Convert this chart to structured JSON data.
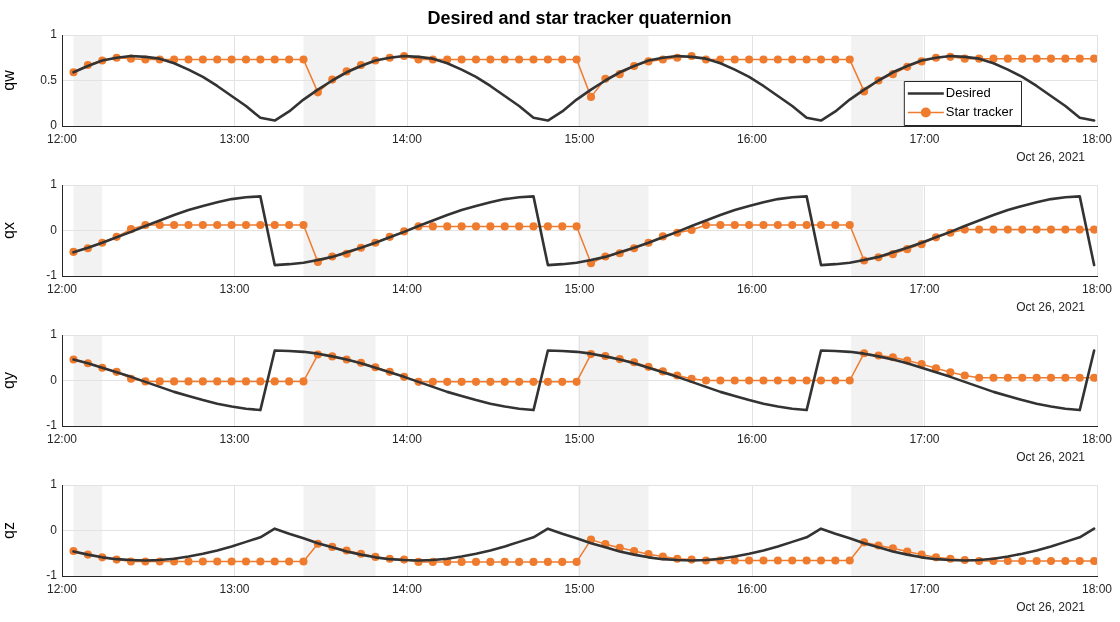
{
  "chart_data": [
    {
      "type": "line",
      "title": "Desired and star tracker quaternion",
      "ylabel": "qw",
      "xlim": [
        12,
        18
      ],
      "ylim": [
        0,
        1
      ],
      "yticks": [
        0,
        0.5,
        1
      ],
      "xticks": [
        {
          "value": 12,
          "label": "12:00"
        },
        {
          "value": 13,
          "label": "13:00"
        },
        {
          "value": 14,
          "label": "14:00"
        },
        {
          "value": 15,
          "label": "15:00"
        },
        {
          "value": 16,
          "label": "16:00"
        },
        {
          "value": 17,
          "label": "17:00"
        },
        {
          "value": 18,
          "label": "18:00"
        }
      ],
      "grid": true,
      "legend": "bottom right",
      "annotations": [
        "Oct 26, 2021"
      ],
      "bands": [
        {
          "axis": "x",
          "from": 12.067,
          "to": 12.233,
          "color": "#f2f2f2"
        },
        {
          "axis": "x",
          "from": 13.4,
          "to": 13.817,
          "color": "#f2f2f2"
        },
        {
          "axis": "x",
          "from": 14.992,
          "to": 15.4,
          "color": "#f2f2f2"
        },
        {
          "axis": "x",
          "from": 16.575,
          "to": 16.992,
          "color": "#f2f2f2"
        }
      ],
      "x": [
        12.0667,
        12.15,
        12.2333,
        12.3167,
        12.4,
        12.4833,
        12.5667,
        12.65,
        12.7333,
        12.8167,
        12.9,
        12.9833,
        13.0667,
        13.15,
        13.2333,
        13.3167,
        13.4,
        13.4833,
        13.5667,
        13.65,
        13.7333,
        13.8167,
        13.9,
        13.9833,
        14.0667,
        14.15,
        14.2333,
        14.3167,
        14.4,
        14.4833,
        14.5667,
        14.65,
        14.7333,
        14.8167,
        14.9,
        14.9833,
        15.0667,
        15.15,
        15.2333,
        15.3167,
        15.4,
        15.4833,
        15.5667,
        15.65,
        15.7333,
        15.8167,
        15.9,
        15.9833,
        16.0667,
        16.15,
        16.2333,
        16.3167,
        16.4,
        16.4833,
        16.5667,
        16.65,
        16.7333,
        16.8167,
        16.9,
        16.9833,
        17.0667,
        17.15,
        17.2333,
        17.3167,
        17.4,
        17.4833,
        17.5667,
        17.65,
        17.7333,
        17.8167,
        17.9,
        17.9833
      ],
      "series": [
        {
          "name": "Desired",
          "color": "#333333",
          "marker": "none",
          "values": [
            0.59,
            0.66,
            0.72,
            0.75,
            0.77,
            0.76,
            0.74,
            0.69,
            0.62,
            0.54,
            0.44,
            0.33,
            0.22,
            0.09,
            0.06,
            0.16,
            0.29,
            0.4,
            0.5,
            0.59,
            0.66,
            0.72,
            0.75,
            0.77,
            0.76,
            0.74,
            0.69,
            0.62,
            0.54,
            0.44,
            0.33,
            0.22,
            0.09,
            0.06,
            0.16,
            0.29,
            0.4,
            0.5,
            0.59,
            0.66,
            0.72,
            0.75,
            0.77,
            0.76,
            0.74,
            0.69,
            0.62,
            0.54,
            0.44,
            0.33,
            0.22,
            0.09,
            0.06,
            0.16,
            0.29,
            0.4,
            0.5,
            0.59,
            0.66,
            0.72,
            0.75,
            0.77,
            0.76,
            0.74,
            0.69,
            0.62,
            0.54,
            0.44,
            0.33,
            0.22,
            0.09,
            0.06
          ]
        },
        {
          "name": "Star tracker",
          "color": "#ef7b2e",
          "marker": "circle",
          "values": [
            0.59,
            0.67,
            0.72,
            0.75,
            0.74,
            0.73,
            0.73,
            0.73,
            0.73,
            0.73,
            0.73,
            0.73,
            0.73,
            0.73,
            0.73,
            0.73,
            0.73,
            0.37,
            0.51,
            0.6,
            0.67,
            0.72,
            0.75,
            0.77,
            0.73,
            0.73,
            0.73,
            0.73,
            0.73,
            0.73,
            0.73,
            0.73,
            0.73,
            0.73,
            0.73,
            0.73,
            0.32,
            0.52,
            0.57,
            0.66,
            0.71,
            0.73,
            0.75,
            0.77,
            0.73,
            0.73,
            0.73,
            0.73,
            0.73,
            0.73,
            0.73,
            0.73,
            0.73,
            0.73,
            0.73,
            0.38,
            0.5,
            0.57,
            0.65,
            0.71,
            0.75,
            0.76,
            0.74,
            0.74,
            0.74,
            0.74,
            0.74,
            0.74,
            0.74,
            0.74,
            0.74,
            0.74
          ]
        }
      ]
    },
    {
      "type": "line",
      "ylabel": "qx",
      "xlim": [
        12,
        18
      ],
      "ylim": [
        -1,
        1
      ],
      "yticks": [
        -1,
        0,
        1
      ],
      "xticks": [
        {
          "value": 12,
          "label": "12:00"
        },
        {
          "value": 13,
          "label": "13:00"
        },
        {
          "value": 14,
          "label": "14:00"
        },
        {
          "value": 15,
          "label": "15:00"
        },
        {
          "value": 16,
          "label": "16:00"
        },
        {
          "value": 17,
          "label": "17:00"
        },
        {
          "value": 18,
          "label": "18:00"
        }
      ],
      "grid": true,
      "annotations": [
        "Oct 26, 2021"
      ],
      "bands": [
        {
          "axis": "x",
          "from": 12.067,
          "to": 12.233,
          "color": "#f2f2f2"
        },
        {
          "axis": "x",
          "from": 13.4,
          "to": 13.817,
          "color": "#f2f2f2"
        },
        {
          "axis": "x",
          "from": 14.992,
          "to": 15.4,
          "color": "#f2f2f2"
        },
        {
          "axis": "x",
          "from": 16.575,
          "to": 16.992,
          "color": "#f2f2f2"
        }
      ],
      "x": [
        12.0667,
        12.15,
        12.2333,
        12.3167,
        12.4,
        12.4833,
        12.5667,
        12.65,
        12.7333,
        12.8167,
        12.9,
        12.9833,
        13.0667,
        13.15,
        13.2333,
        13.3167,
        13.4,
        13.4833,
        13.5667,
        13.65,
        13.7333,
        13.8167,
        13.9,
        13.9833,
        14.0667,
        14.15,
        14.2333,
        14.3167,
        14.4,
        14.4833,
        14.5667,
        14.65,
        14.7333,
        14.8167,
        14.9,
        14.9833,
        15.0667,
        15.15,
        15.2333,
        15.3167,
        15.4,
        15.4833,
        15.5667,
        15.65,
        15.7333,
        15.8167,
        15.9,
        15.9833,
        16.0667,
        16.15,
        16.2333,
        16.3167,
        16.4,
        16.4833,
        16.5667,
        16.65,
        16.7333,
        16.8167,
        16.9,
        16.9833,
        17.0667,
        17.15,
        17.2333,
        17.3167,
        17.4,
        17.4833,
        17.5667,
        17.65,
        17.7333,
        17.8167,
        17.9,
        17.9833
      ],
      "series": [
        {
          "color": "#333333",
          "marker": "none",
          "values": [
            -0.48,
            -0.38,
            -0.27,
            -0.15,
            -0.03,
            0.1,
            0.22,
            0.34,
            0.45,
            0.54,
            0.62,
            0.69,
            0.73,
            0.75,
            -0.76,
            -0.74,
            -0.71,
            -0.65,
            -0.58,
            -0.48,
            -0.38,
            -0.27,
            -0.15,
            -0.03,
            0.1,
            0.22,
            0.34,
            0.45,
            0.54,
            0.62,
            0.69,
            0.73,
            0.75,
            -0.76,
            -0.74,
            -0.71,
            -0.65,
            -0.58,
            -0.48,
            -0.38,
            -0.27,
            -0.15,
            -0.03,
            0.1,
            0.22,
            0.34,
            0.45,
            0.54,
            0.62,
            0.69,
            0.73,
            0.75,
            -0.76,
            -0.74,
            -0.71,
            -0.65,
            -0.58,
            -0.48,
            -0.38,
            -0.27,
            -0.15,
            -0.03,
            0.1,
            0.22,
            0.34,
            0.45,
            0.54,
            0.62,
            0.69,
            0.73,
            0.75,
            -0.76
          ]
        },
        {
          "color": "#ef7b2e",
          "marker": "circle",
          "values": [
            -0.47,
            -0.39,
            -0.27,
            -0.14,
            0.03,
            0.12,
            0.12,
            0.12,
            0.12,
            0.12,
            0.12,
            0.12,
            0.12,
            0.12,
            0.12,
            0.12,
            0.12,
            -0.69,
            -0.57,
            -0.51,
            -0.38,
            -0.27,
            -0.14,
            -0.02,
            0.09,
            0.09,
            0.09,
            0.09,
            0.09,
            0.09,
            0.09,
            0.09,
            0.09,
            0.09,
            0.09,
            0.09,
            -0.72,
            -0.57,
            -0.5,
            -0.39,
            -0.27,
            -0.13,
            -0.05,
            0.01,
            0.12,
            0.12,
            0.12,
            0.12,
            0.12,
            0.12,
            0.12,
            0.12,
            0.12,
            0.12,
            0.12,
            -0.66,
            -0.59,
            -0.52,
            -0.41,
            -0.3,
            -0.15,
            -0.05,
            0.02,
            0.02,
            0.02,
            0.02,
            0.02,
            0.02,
            0.02,
            0.02,
            0.02,
            0.02
          ]
        }
      ]
    },
    {
      "type": "line",
      "ylabel": "qy",
      "xlim": [
        12,
        18
      ],
      "ylim": [
        -1,
        1
      ],
      "yticks": [
        -1,
        0,
        1
      ],
      "xticks": [
        {
          "value": 12,
          "label": "12:00"
        },
        {
          "value": 13,
          "label": "13:00"
        },
        {
          "value": 14,
          "label": "14:00"
        },
        {
          "value": 15,
          "label": "15:00"
        },
        {
          "value": 16,
          "label": "16:00"
        },
        {
          "value": 17,
          "label": "17:00"
        },
        {
          "value": 18,
          "label": "18:00"
        }
      ],
      "grid": true,
      "annotations": [
        "Oct 26, 2021"
      ],
      "bands": [
        {
          "axis": "x",
          "from": 12.067,
          "to": 12.233,
          "color": "#f2f2f2"
        },
        {
          "axis": "x",
          "from": 13.4,
          "to": 13.817,
          "color": "#f2f2f2"
        },
        {
          "axis": "x",
          "from": 14.992,
          "to": 15.4,
          "color": "#f2f2f2"
        },
        {
          "axis": "x",
          "from": 16.575,
          "to": 16.992,
          "color": "#f2f2f2"
        }
      ],
      "x": [
        12.0667,
        12.15,
        12.2333,
        12.3167,
        12.4,
        12.4833,
        12.5667,
        12.65,
        12.7333,
        12.8167,
        12.9,
        12.9833,
        13.0667,
        13.15,
        13.2333,
        13.3167,
        13.4,
        13.4833,
        13.5667,
        13.65,
        13.7333,
        13.8167,
        13.9,
        13.9833,
        14.0667,
        14.15,
        14.2333,
        14.3167,
        14.4,
        14.4833,
        14.5667,
        14.65,
        14.7333,
        14.8167,
        14.9,
        14.9833,
        15.0667,
        15.15,
        15.2333,
        15.3167,
        15.4,
        15.4833,
        15.5667,
        15.65,
        15.7333,
        15.8167,
        15.9,
        15.9833,
        16.0667,
        16.15,
        16.2333,
        16.3167,
        16.4,
        16.4833,
        16.5667,
        16.65,
        16.7333,
        16.8167,
        16.9,
        16.9833,
        17.0667,
        17.15,
        17.2333,
        17.3167,
        17.4,
        17.4833,
        17.5667,
        17.65,
        17.7333,
        17.8167,
        17.9,
        17.9833
      ],
      "series": [
        {
          "color": "#333333",
          "marker": "none",
          "values": [
            0.46,
            0.38,
            0.28,
            0.18,
            0.08,
            -0.03,
            -0.14,
            -0.25,
            -0.34,
            -0.43,
            -0.51,
            -0.57,
            -0.62,
            -0.65,
            0.66,
            0.65,
            0.63,
            0.59,
            0.53,
            0.46,
            0.38,
            0.28,
            0.18,
            0.08,
            -0.03,
            -0.14,
            -0.25,
            -0.34,
            -0.43,
            -0.51,
            -0.57,
            -0.62,
            -0.65,
            0.66,
            0.65,
            0.63,
            0.59,
            0.53,
            0.46,
            0.38,
            0.28,
            0.18,
            0.08,
            -0.03,
            -0.14,
            -0.25,
            -0.34,
            -0.43,
            -0.51,
            -0.57,
            -0.62,
            -0.65,
            0.66,
            0.65,
            0.63,
            0.59,
            0.53,
            0.46,
            0.38,
            0.28,
            0.18,
            0.08,
            -0.03,
            -0.14,
            -0.25,
            -0.34,
            -0.43,
            -0.51,
            -0.57,
            -0.62,
            -0.65,
            0.66
          ]
        },
        {
          "color": "#ef7b2e",
          "marker": "circle",
          "values": [
            0.46,
            0.38,
            0.28,
            0.19,
            0.04,
            -0.02,
            -0.02,
            -0.02,
            -0.02,
            -0.02,
            -0.02,
            -0.02,
            -0.02,
            -0.02,
            -0.02,
            -0.02,
            -0.02,
            0.57,
            0.53,
            0.46,
            0.39,
            0.29,
            0.19,
            0.08,
            -0.03,
            -0.03,
            -0.03,
            -0.03,
            -0.03,
            -0.03,
            -0.03,
            -0.03,
            -0.03,
            -0.03,
            -0.03,
            -0.03,
            0.58,
            0.54,
            0.47,
            0.4,
            0.3,
            0.2,
            0.11,
            0.04,
            0.0,
            0.0,
            0.0,
            0.0,
            0.0,
            0.0,
            0.0,
            0.0,
            0.0,
            0.0,
            0.0,
            0.6,
            0.55,
            0.51,
            0.44,
            0.36,
            0.27,
            0.18,
            0.11,
            0.06,
            0.06,
            0.06,
            0.06,
            0.06,
            0.06,
            0.06,
            0.06,
            0.06
          ]
        }
      ]
    },
    {
      "type": "line",
      "ylabel": "qz",
      "xlim": [
        12,
        18
      ],
      "ylim": [
        -1,
        1
      ],
      "yticks": [
        -1,
        0,
        1
      ],
      "xticks": [
        {
          "value": 12,
          "label": "12:00"
        },
        {
          "value": 13,
          "label": "13:00"
        },
        {
          "value": 14,
          "label": "14:00"
        },
        {
          "value": 15,
          "label": "15:00"
        },
        {
          "value": 16,
          "label": "16:00"
        },
        {
          "value": 17,
          "label": "17:00"
        },
        {
          "value": 18,
          "label": "18:00"
        }
      ],
      "grid": true,
      "annotations": [
        "Oct 26, 2021"
      ],
      "bands": [
        {
          "axis": "x",
          "from": 12.067,
          "to": 12.233,
          "color": "#f2f2f2"
        },
        {
          "axis": "x",
          "from": 13.4,
          "to": 13.817,
          "color": "#f2f2f2"
        },
        {
          "axis": "x",
          "from": 14.992,
          "to": 15.4,
          "color": "#f2f2f2"
        },
        {
          "axis": "x",
          "from": 16.575,
          "to": 16.992,
          "color": "#f2f2f2"
        }
      ],
      "x": [
        12.0667,
        12.15,
        12.2333,
        12.3167,
        12.4,
        12.4833,
        12.5667,
        12.65,
        12.7333,
        12.8167,
        12.9,
        12.9833,
        13.0667,
        13.15,
        13.2333,
        13.3167,
        13.4,
        13.4833,
        13.5667,
        13.65,
        13.7333,
        13.8167,
        13.9,
        13.9833,
        14.0667,
        14.15,
        14.2333,
        14.3167,
        14.4,
        14.4833,
        14.5667,
        14.65,
        14.7333,
        14.8167,
        14.9,
        14.9833,
        15.0667,
        15.15,
        15.2333,
        15.3167,
        15.4,
        15.4833,
        15.5667,
        15.65,
        15.7333,
        15.8167,
        15.9,
        15.9833,
        16.0667,
        16.15,
        16.2333,
        16.3167,
        16.4,
        16.4833,
        16.5667,
        16.65,
        16.7333,
        16.8167,
        16.9,
        16.9833,
        17.0667,
        17.15,
        17.2333,
        17.3167,
        17.4,
        17.4833,
        17.5667,
        17.65,
        17.7333,
        17.8167,
        17.9,
        17.9833
      ],
      "series": [
        {
          "color": "#333333",
          "marker": "none",
          "values": [
            -0.46,
            -0.53,
            -0.59,
            -0.63,
            -0.65,
            -0.66,
            -0.65,
            -0.62,
            -0.57,
            -0.51,
            -0.44,
            -0.35,
            -0.25,
            -0.15,
            0.04,
            -0.07,
            -0.17,
            -0.28,
            -0.37,
            -0.46,
            -0.53,
            -0.59,
            -0.63,
            -0.65,
            -0.66,
            -0.65,
            -0.62,
            -0.57,
            -0.51,
            -0.44,
            -0.35,
            -0.25,
            -0.15,
            0.04,
            -0.07,
            -0.17,
            -0.28,
            -0.37,
            -0.46,
            -0.53,
            -0.59,
            -0.63,
            -0.65,
            -0.66,
            -0.65,
            -0.62,
            -0.57,
            -0.51,
            -0.44,
            -0.35,
            -0.25,
            -0.15,
            0.04,
            -0.07,
            -0.17,
            -0.28,
            -0.37,
            -0.46,
            -0.53,
            -0.59,
            -0.63,
            -0.65,
            -0.66,
            -0.65,
            -0.62,
            -0.57,
            -0.51,
            -0.44,
            -0.35,
            -0.25,
            -0.15,
            0.04
          ]
        },
        {
          "color": "#ef7b2e",
          "marker": "circle",
          "values": [
            -0.45,
            -0.53,
            -0.59,
            -0.64,
            -0.68,
            -0.68,
            -0.68,
            -0.68,
            -0.68,
            -0.68,
            -0.68,
            -0.68,
            -0.68,
            -0.68,
            -0.68,
            -0.68,
            -0.68,
            -0.29,
            -0.36,
            -0.44,
            -0.51,
            -0.58,
            -0.62,
            -0.64,
            -0.69,
            -0.69,
            -0.69,
            -0.69,
            -0.69,
            -0.69,
            -0.69,
            -0.69,
            -0.69,
            -0.69,
            -0.69,
            -0.69,
            -0.2,
            -0.3,
            -0.38,
            -0.45,
            -0.52,
            -0.57,
            -0.62,
            -0.64,
            -0.66,
            -0.66,
            -0.66,
            -0.66,
            -0.66,
            -0.66,
            -0.66,
            -0.66,
            -0.66,
            -0.66,
            -0.66,
            -0.26,
            -0.33,
            -0.39,
            -0.46,
            -0.53,
            -0.59,
            -0.62,
            -0.65,
            -0.67,
            -0.67,
            -0.67,
            -0.67,
            -0.67,
            -0.67,
            -0.67,
            -0.67,
            -0.67
          ]
        }
      ]
    }
  ]
}
